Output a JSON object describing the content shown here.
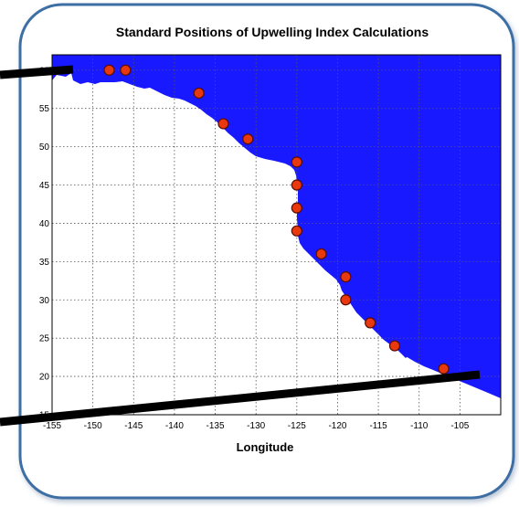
{
  "map": {
    "title": "Standard Positions of Upwelling Index Calculations",
    "xlabel": "Longitude",
    "ylabel": "",
    "colors": {
      "ocean": "#1919ff",
      "land": "#ffffff",
      "station_fill": "#e8380e",
      "station_stroke": "#5a0d00",
      "frame_border": "#3c6ea4",
      "grid": "#555555",
      "pointer_line": "#000000"
    }
  },
  "chart_data": {
    "type": "scatter",
    "title": "Standard Positions of Upwelling Index Calculations",
    "xlabel": "Longitude",
    "ylabel": "",
    "xlim": [
      -155,
      -100
    ],
    "ylim": [
      15,
      62
    ],
    "x_ticks": [
      "-155",
      "-150",
      "-145",
      "-140",
      "-135",
      "-130",
      "-125",
      "-120",
      "-115",
      "-110",
      "-105"
    ],
    "y_ticks": [
      "15",
      "20",
      "25",
      "30",
      "35",
      "40",
      "45",
      "50",
      "55",
      "60"
    ],
    "grid": true,
    "series": [
      {
        "points": [
          {
            "x": -148,
            "y": 60
          },
          {
            "x": -146,
            "y": 60
          },
          {
            "x": -137,
            "y": 57
          },
          {
            "x": -134,
            "y": 53
          },
          {
            "x": -131,
            "y": 51
          },
          {
            "x": -125,
            "y": 48
          },
          {
            "x": -125,
            "y": 45
          },
          {
            "x": -125,
            "y": 42
          },
          {
            "x": -125,
            "y": 39
          },
          {
            "x": -122,
            "y": 36
          },
          {
            "x": -119,
            "y": 33
          },
          {
            "x": -119,
            "y": 30
          },
          {
            "x": -116,
            "y": 27
          },
          {
            "x": -113,
            "y": 24
          },
          {
            "x": -107,
            "y": 21
          }
        ]
      }
    ]
  }
}
